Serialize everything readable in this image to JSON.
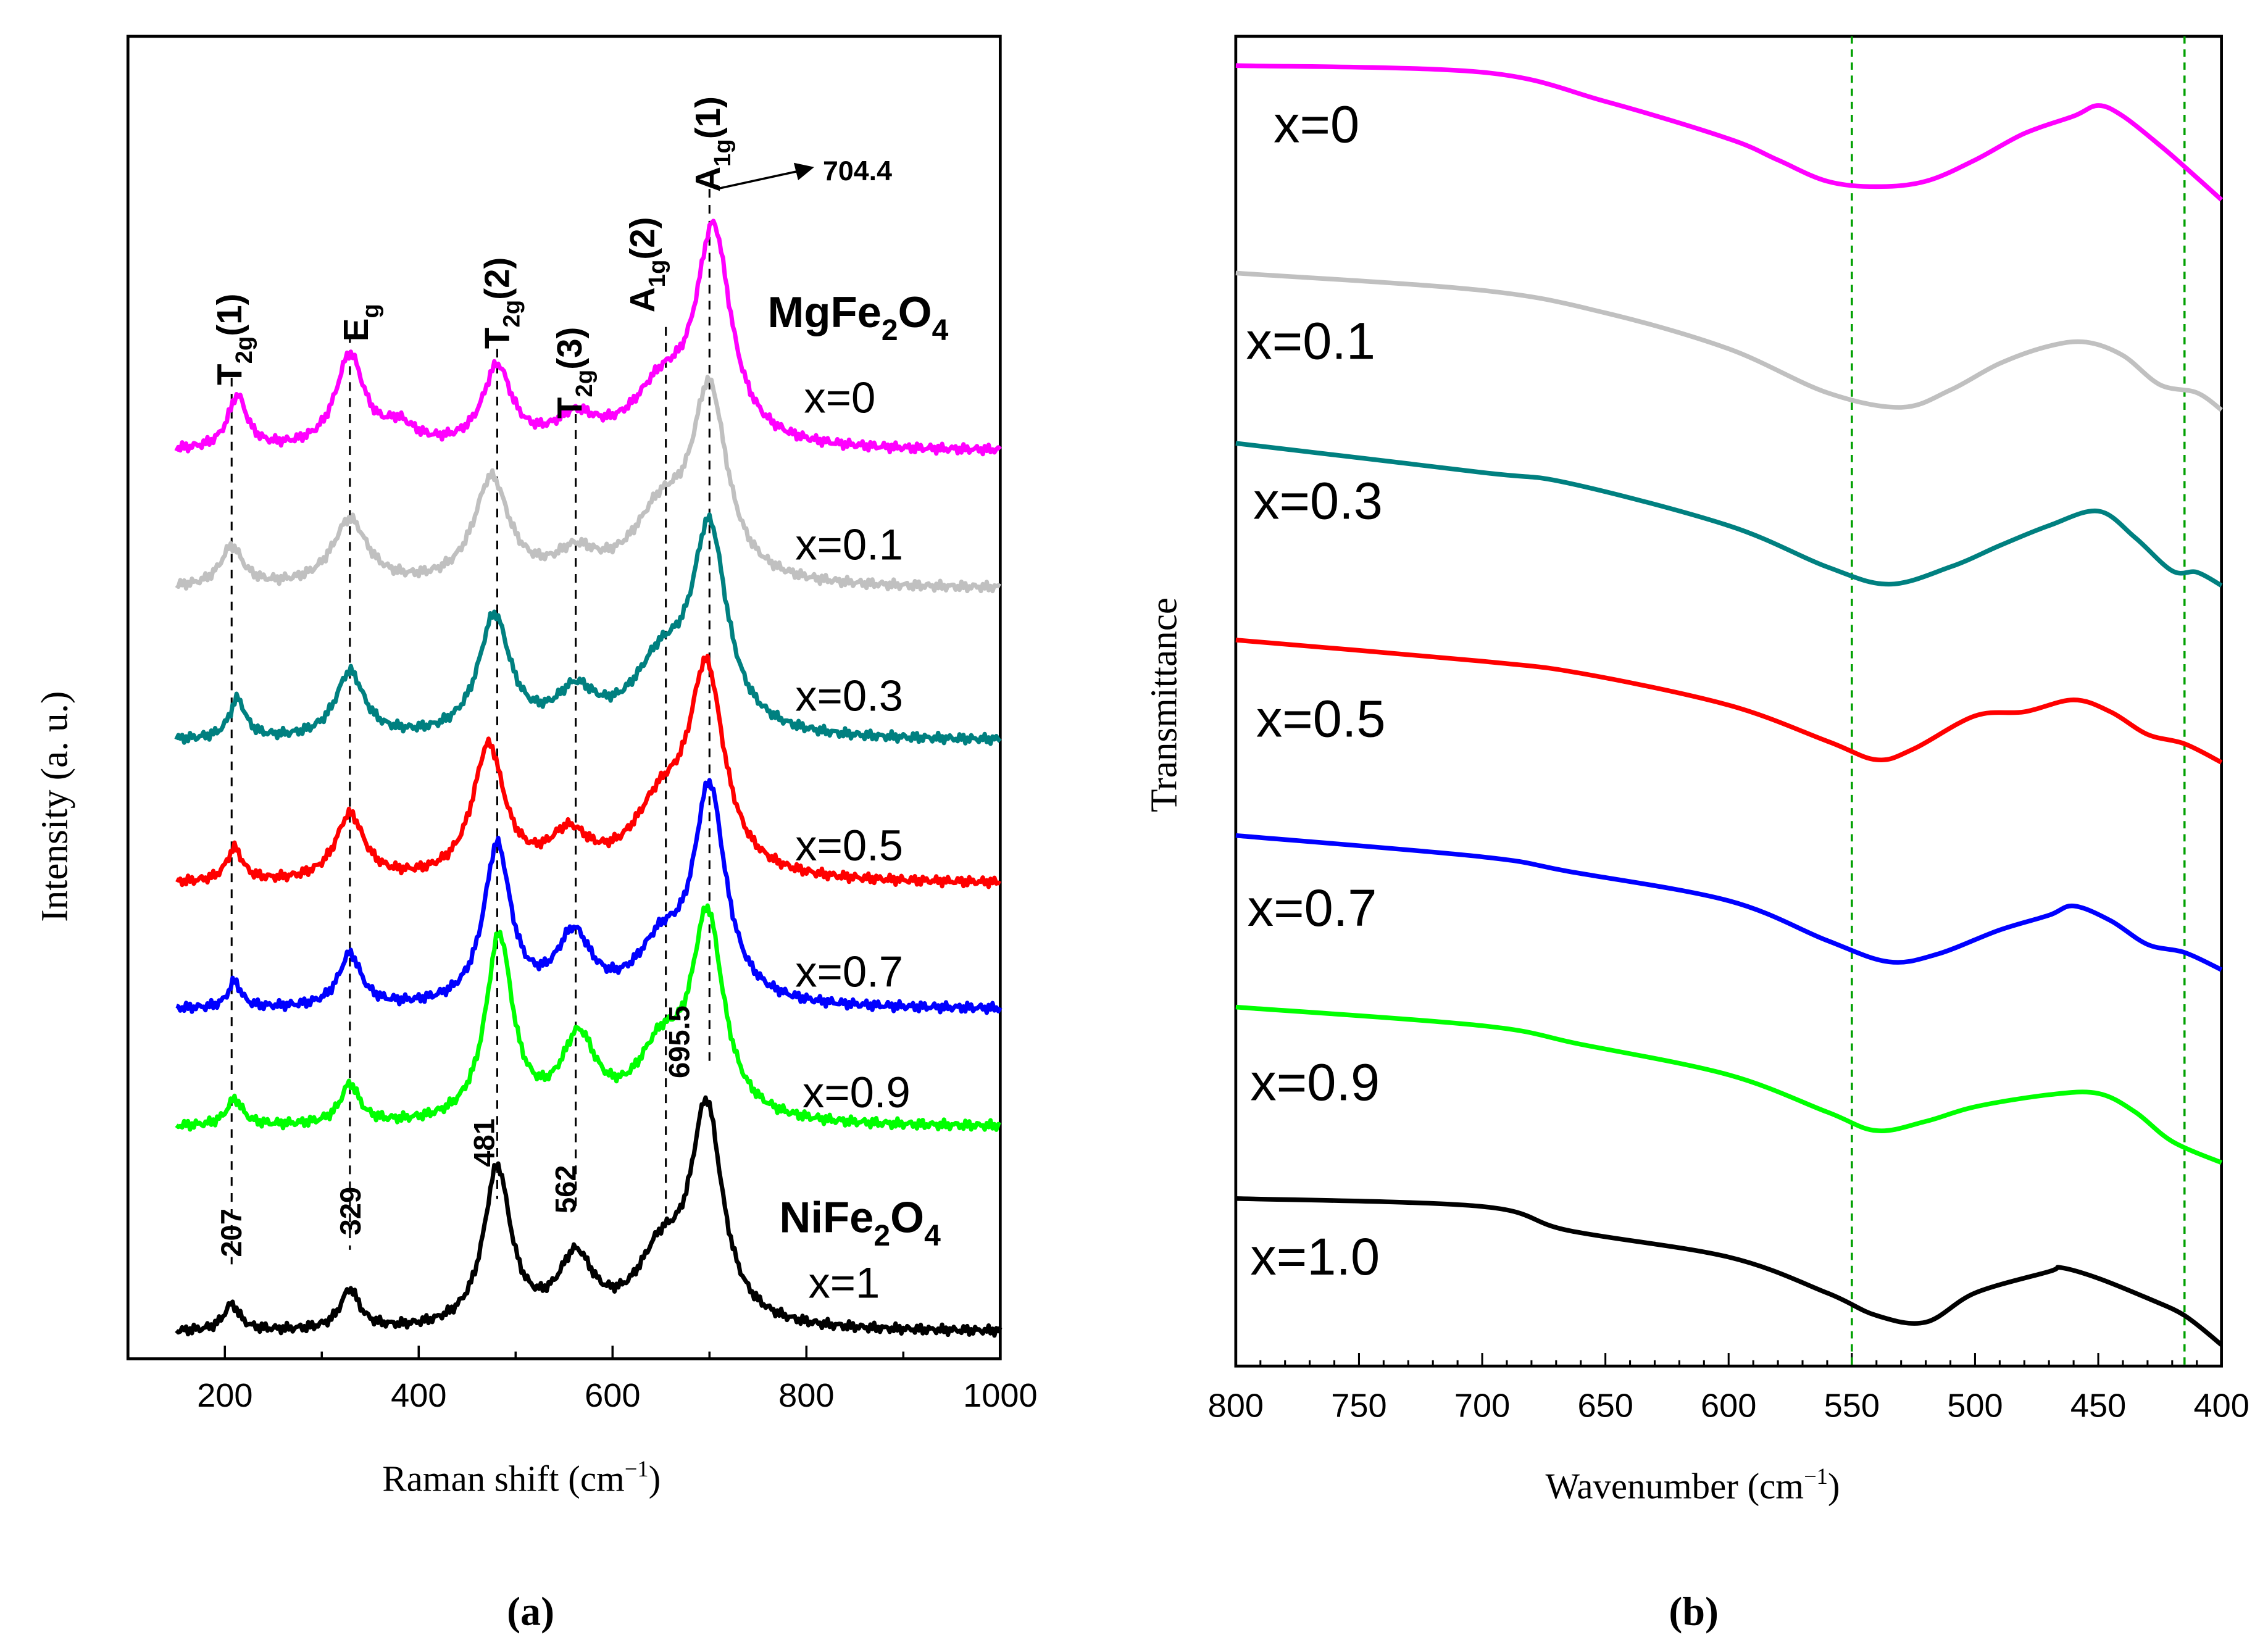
{
  "chart_data": [
    {
      "type": "line",
      "panel_label": "(a)",
      "xlabel": "Raman shift (cm",
      "xlabel_sup": "−1",
      "xlabel_end": ")",
      "ylabel": "Intensity (a. u.)",
      "xlim": [
        100,
        1000
      ],
      "ylim": [
        0,
        100
      ],
      "xticks": [
        200,
        400,
        600,
        800,
        1000
      ],
      "grid": false,
      "model_note_units": "series given as baseline + Lorentzian peaks [position cm-1, height, half-width]",
      "series": [
        {
          "name": "x=0",
          "color": "#ff00ff",
          "baseline": 68.6,
          "peaks": [
            [
              213,
              4,
              12
            ],
            [
              329,
              7,
              18
            ],
            [
              380,
              1.5,
              20
            ],
            [
              481,
              6,
              18
            ],
            [
              562,
              2,
              25
            ],
            [
              650,
              4,
              35
            ],
            [
              704,
              16,
              22
            ]
          ]
        },
        {
          "name": "x=0.1",
          "color": "#c0c0c0",
          "baseline": 58.2,
          "peaks": [
            [
              207,
              3,
              14
            ],
            [
              329,
              5,
              22
            ],
            [
              475,
              8,
              22
            ],
            [
              562,
              2,
              25
            ],
            [
              650,
              5,
              35
            ],
            [
              700,
              14,
              22
            ]
          ]
        },
        {
          "name": "x=0.3",
          "color": "#008080",
          "baseline": 46.7,
          "peaks": [
            [
              213,
              3,
              10
            ],
            [
              329,
              5,
              18
            ],
            [
              478,
              9,
              20
            ],
            [
              562,
              3,
              25
            ],
            [
              650,
              5,
              35
            ],
            [
              700,
              15,
              22
            ]
          ]
        },
        {
          "name": "x=0.5",
          "color": "#ff0000",
          "baseline": 35.9,
          "peaks": [
            [
              210,
              2.5,
              10
            ],
            [
              329,
              5,
              18
            ],
            [
              472,
              10,
              20
            ],
            [
              555,
              3,
              25
            ],
            [
              650,
              5,
              35
            ],
            [
              697,
              15,
              22
            ]
          ]
        },
        {
          "name": "x=0.7",
          "color": "#0000ff",
          "baseline": 26.4,
          "peaks": [
            [
              210,
              2,
              8
            ],
            [
              329,
              4,
              14
            ],
            [
              481,
              12,
              17
            ],
            [
              560,
              5,
              22
            ],
            [
              650,
              4,
              30
            ],
            [
              700,
              16,
              20
            ]
          ]
        },
        {
          "name": "x=0.9",
          "color": "#00ff00",
          "baseline": 17.5,
          "peaks": [
            [
              210,
              2,
              10
            ],
            [
              329,
              3,
              12
            ],
            [
              483,
              14,
              17
            ],
            [
              565,
              6,
              22
            ],
            [
              650,
              5,
              30
            ],
            [
              698,
              15,
              20
            ]
          ]
        },
        {
          "name": "x=1",
          "color": "#000000",
          "baseline": 2.0,
          "peaks": [
            [
              207,
              2,
              10
            ],
            [
              329,
              3,
              12
            ],
            [
              481,
              12,
              17
            ],
            [
              562,
              5,
              22
            ],
            [
              650,
              5,
              30
            ],
            [
              697,
              16,
              20
            ]
          ]
        }
      ],
      "series_labels": [
        "x=0",
        "x=0.1",
        "x=0.3",
        "x=0.5",
        "x=0.7",
        "x=0.9",
        "x=1"
      ],
      "mode_annotations": [
        {
          "main": "T",
          "sub": "2g",
          "rest": "(1)",
          "at": 207
        },
        {
          "main": "E",
          "sub": "g",
          "rest": "",
          "at": 329
        },
        {
          "main": "T",
          "sub": "2g",
          "rest": "(2)",
          "at": 481
        },
        {
          "main": "T",
          "sub": "2g",
          "rest": "(3)",
          "at": 562
        },
        {
          "main": "A",
          "sub": "1g",
          "rest": "(2)",
          "at": 655
        },
        {
          "main": "A",
          "sub": "1g",
          "rest": "(1)",
          "at": 700
        }
      ],
      "peak_value_labels": [
        "207",
        "329",
        "481",
        "562",
        "695.5"
      ],
      "arrow_annotation": "704.4",
      "compound_top": {
        "a": "MgFe",
        "s1": "2",
        "b": "O",
        "s2": "4"
      },
      "compound_bottom": {
        "a": "NiFe",
        "s1": "2",
        "b": "O",
        "s2": "4"
      }
    },
    {
      "type": "line",
      "panel_label": "(b)",
      "xlabel": "Wavenumber (cm",
      "xlabel_sup": "−1",
      "xlabel_end": ")",
      "ylabel": "Transmittance",
      "xlim": [
        800,
        400
      ],
      "ylim": [
        0,
        100
      ],
      "xticks": [
        800,
        750,
        700,
        650,
        600,
        550,
        500,
        450,
        400
      ],
      "reference_lines": [
        550,
        415
      ],
      "reference_line_color": "#00a000",
      "grid": false,
      "x": [
        800,
        700,
        650,
        600,
        560,
        540,
        520,
        500,
        480,
        460,
        450,
        440,
        425,
        415,
        400
      ],
      "series": [
        {
          "name": "x=0",
          "color": "#ff00ff",
          "x": [
            800,
            700,
            650,
            600,
            580,
            560,
            540,
            520,
            500,
            480,
            460,
            450,
            440,
            425,
            415,
            400
          ],
          "values": [
            97.8,
            97.3,
            95.1,
            92.3,
            90.7,
            89.1,
            88.7,
            89.1,
            90.7,
            92.7,
            94.0,
            94.8,
            94.0,
            91.8,
            90.2,
            87.7
          ]
        },
        {
          "name": "x=0.1",
          "color": "#c0c0c0",
          "x": [
            800,
            700,
            650,
            600,
            560,
            530,
            510,
            490,
            470,
            455,
            440,
            425,
            410,
            400
          ],
          "values": [
            82.2,
            80.9,
            79.2,
            76.5,
            73.2,
            72.1,
            73.4,
            75.4,
            76.7,
            77.0,
            76.0,
            73.8,
            73.2,
            71.9
          ]
        },
        {
          "name": "x=0.3",
          "color": "#008080",
          "x": [
            800,
            700,
            665,
            600,
            560,
            535,
            510,
            490,
            470,
            450,
            435,
            420,
            410,
            400
          ],
          "values": [
            69.4,
            67.2,
            66.4,
            63.2,
            60.1,
            58.8,
            60.1,
            61.7,
            63.2,
            64.3,
            62.3,
            59.8,
            59.7,
            58.7
          ]
        },
        {
          "name": "x=0.5",
          "color": "#ff0000",
          "x": [
            800,
            700,
            660,
            600,
            560,
            540,
            525,
            500,
            480,
            460,
            445,
            430,
            415,
            400
          ],
          "values": [
            54.6,
            53.0,
            52.1,
            49.7,
            47.0,
            45.6,
            46.4,
            48.9,
            49.2,
            50.1,
            49.2,
            47.5,
            46.8,
            45.4
          ]
        },
        {
          "name": "x=0.7",
          "color": "#0000ff",
          "x": [
            800,
            700,
            665,
            600,
            560,
            535,
            515,
            490,
            470,
            460,
            445,
            430,
            415,
            400
          ],
          "values": [
            39.9,
            38.3,
            37.2,
            35.0,
            32.0,
            30.4,
            31.0,
            32.8,
            33.9,
            34.6,
            33.5,
            31.7,
            31.1,
            29.8
          ]
        },
        {
          "name": "x=0.9",
          "color": "#00ff00",
          "x": [
            800,
            700,
            660,
            600,
            560,
            540,
            520,
            500,
            470,
            450,
            435,
            420,
            400
          ],
          "values": [
            27.0,
            25.6,
            24.2,
            21.9,
            19.1,
            17.7,
            18.4,
            19.5,
            20.4,
            20.5,
            19.1,
            16.9,
            15.3
          ]
        },
        {
          "name": "x=1.0",
          "color": "#000000",
          "x": [
            800,
            700,
            665,
            600,
            560,
            540,
            520,
            500,
            470,
            465,
            450,
            430,
            415,
            400
          ],
          "values": [
            12.6,
            12.0,
            10.2,
            8.2,
            5.5,
            3.8,
            3.3,
            5.5,
            7.1,
            7.4,
            6.6,
            5.1,
            3.8,
            1.6
          ]
        }
      ],
      "series_labels": [
        "x=0",
        "x=0.1",
        "x=0.3",
        "x=0.5",
        "x=0.7",
        "x=0.9",
        "x=1.0"
      ]
    }
  ]
}
